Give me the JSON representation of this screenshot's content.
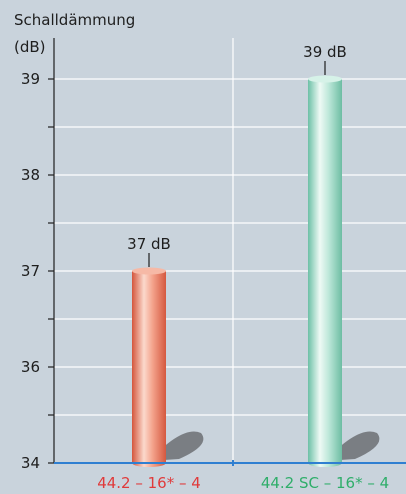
{
  "chart_data": {
    "type": "bar",
    "ylabel": "Schalldämmung",
    "yunit": "(dB)",
    "ylim": [
      34,
      39.4
    ],
    "yticks": [
      34,
      36,
      37,
      38,
      39
    ],
    "minor_tick_step": 0.5,
    "grid": true,
    "categories": [
      "44.2 – 16* – 4",
      "44.2 SC – 16* – 4"
    ],
    "values": [
      37,
      39
    ],
    "value_labels": [
      "37 dB",
      "39 dB"
    ],
    "colors": {
      "background": "#c9d3dc",
      "bar1": "#e8826a",
      "bar2": "#a7dccb",
      "label1": "#e03a3a",
      "label2": "#2fae6a",
      "axis_baseline": "#2f7fd1"
    }
  }
}
